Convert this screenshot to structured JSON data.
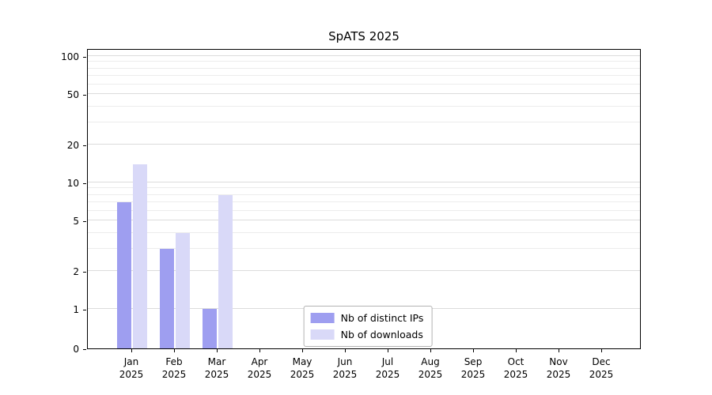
{
  "chart_data": {
    "type": "bar",
    "title": "SpATS 2025",
    "categories": [
      "Jan",
      "Feb",
      "Mar",
      "Apr",
      "May",
      "Jun",
      "Jul",
      "Aug",
      "Sep",
      "Oct",
      "Nov",
      "Dec"
    ],
    "year_label": "2025",
    "series": [
      {
        "name": "Nb of distinct IPs",
        "color": "#9e9ef0",
        "values": [
          7,
          3,
          1,
          0,
          0,
          0,
          0,
          0,
          0,
          0,
          0,
          0
        ]
      },
      {
        "name": "Nb of downloads",
        "color": "#d9d9f8",
        "values": [
          14,
          4,
          8,
          0,
          0,
          0,
          0,
          0,
          0,
          0,
          0,
          0
        ]
      }
    ],
    "yscale": "symlog",
    "y_ticks": [
      0,
      1,
      2,
      5,
      10,
      20,
      50,
      100
    ],
    "y_minor_ticks": [
      3,
      4,
      6,
      7,
      8,
      9,
      30,
      40,
      60,
      70,
      80,
      90
    ],
    "ylim": [
      0,
      115
    ],
    "grid": "horizontal",
    "legend_position": "lower-center",
    "colors": {
      "axis": "#000000",
      "grid_major": "#dcdcdc",
      "grid_minor": "#ececec"
    }
  }
}
